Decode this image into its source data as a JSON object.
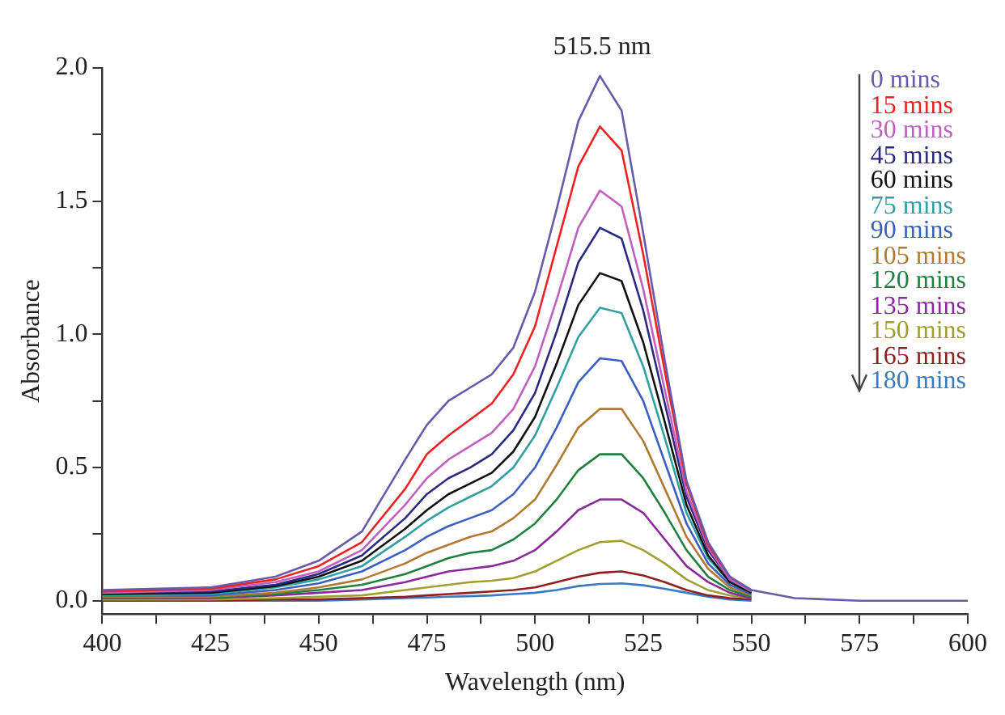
{
  "chart_data": {
    "type": "line",
    "xlabel": "Wavelength (nm)",
    "ylabel": "Absorbance",
    "annotations": [
      {
        "text": "515.5 nm",
        "x": 515.5,
        "y": 1.98
      }
    ],
    "x": [
      400,
      425,
      440,
      450,
      460,
      470,
      475,
      480,
      485,
      490,
      495,
      500,
      505,
      510,
      515,
      520,
      525,
      530,
      535,
      540,
      545,
      550,
      560,
      575,
      600
    ],
    "series": [
      {
        "name": "0 mins",
        "color": "#6a5aaa",
        "values": [
          0.04,
          0.05,
          0.09,
          0.15,
          0.26,
          0.53,
          0.66,
          0.75,
          0.8,
          0.85,
          0.95,
          1.16,
          1.47,
          1.8,
          1.97,
          1.84,
          1.38,
          0.9,
          0.45,
          0.22,
          0.09,
          0.04,
          0.01,
          0,
          0
        ]
      },
      {
        "name": "15 mins",
        "color": "#ee2222",
        "values": [
          0.035,
          0.045,
          0.08,
          0.13,
          0.22,
          0.42,
          0.55,
          0.62,
          0.68,
          0.74,
          0.85,
          1.03,
          1.33,
          1.63,
          1.78,
          1.69,
          1.3,
          0.86,
          0.44,
          0.21,
          0.09,
          0.04,
          null,
          null,
          null
        ]
      },
      {
        "name": "30 mins",
        "color": "#c060c0",
        "values": [
          0.03,
          0.04,
          0.07,
          0.11,
          0.19,
          0.36,
          0.46,
          0.53,
          0.58,
          0.63,
          0.72,
          0.88,
          1.13,
          1.4,
          1.54,
          1.48,
          1.17,
          0.79,
          0.41,
          0.2,
          0.08,
          0.035,
          null,
          null,
          null
        ]
      },
      {
        "name": "45 mins",
        "color": "#2a2a80",
        "values": [
          0.03,
          0.035,
          0.06,
          0.1,
          0.17,
          0.31,
          0.4,
          0.46,
          0.5,
          0.55,
          0.64,
          0.78,
          1.01,
          1.27,
          1.4,
          1.36,
          1.09,
          0.74,
          0.39,
          0.19,
          0.08,
          0.035,
          null,
          null,
          null
        ]
      },
      {
        "name": "60 mins",
        "color": "#111111",
        "values": [
          0.025,
          0.03,
          0.055,
          0.09,
          0.15,
          0.27,
          0.34,
          0.4,
          0.44,
          0.48,
          0.56,
          0.69,
          0.89,
          1.11,
          1.23,
          1.2,
          0.97,
          0.67,
          0.36,
          0.17,
          0.07,
          0.03,
          null,
          null,
          null
        ]
      },
      {
        "name": "75 mins",
        "color": "#30a0a0",
        "values": [
          0.02,
          0.025,
          0.05,
          0.08,
          0.13,
          0.24,
          0.3,
          0.35,
          0.39,
          0.43,
          0.5,
          0.62,
          0.8,
          0.99,
          1.1,
          1.08,
          0.88,
          0.61,
          0.33,
          0.16,
          0.07,
          0.03,
          null,
          null,
          null
        ]
      },
      {
        "name": "90 mins",
        "color": "#3a60c0",
        "values": [
          0.02,
          0.02,
          0.04,
          0.065,
          0.11,
          0.19,
          0.24,
          0.28,
          0.31,
          0.34,
          0.4,
          0.5,
          0.65,
          0.82,
          0.91,
          0.9,
          0.75,
          0.52,
          0.29,
          0.14,
          0.06,
          0.025,
          null,
          null,
          null
        ]
      },
      {
        "name": "105 mins",
        "color": "#b07a30",
        "values": [
          0.015,
          0.015,
          0.03,
          0.05,
          0.08,
          0.14,
          0.18,
          0.21,
          0.24,
          0.26,
          0.31,
          0.38,
          0.51,
          0.65,
          0.72,
          0.72,
          0.6,
          0.42,
          0.24,
          0.12,
          0.05,
          0.02,
          null,
          null,
          null
        ]
      },
      {
        "name": "120 mins",
        "color": "#208040",
        "values": [
          0.01,
          0.012,
          0.025,
          0.04,
          0.06,
          0.1,
          0.13,
          0.16,
          0.18,
          0.19,
          0.23,
          0.29,
          0.38,
          0.49,
          0.55,
          0.55,
          0.46,
          0.33,
          0.19,
          0.09,
          0.04,
          0.015,
          null,
          null,
          null
        ]
      },
      {
        "name": "135 mins",
        "color": "#8a2a9a",
        "values": [
          0.01,
          0.01,
          0.02,
          0.03,
          0.04,
          0.07,
          0.09,
          0.11,
          0.12,
          0.13,
          0.15,
          0.19,
          0.26,
          0.34,
          0.38,
          0.38,
          0.33,
          0.23,
          0.13,
          0.07,
          0.03,
          0.01,
          null,
          null,
          null
        ]
      },
      {
        "name": "150 mins",
        "color": "#a0a030",
        "values": [
          0.005,
          0.005,
          0.01,
          0.015,
          0.02,
          0.04,
          0.05,
          0.06,
          0.07,
          0.075,
          0.085,
          0.11,
          0.15,
          0.19,
          0.22,
          0.225,
          0.19,
          0.14,
          0.08,
          0.04,
          0.02,
          0.01,
          null,
          null,
          null
        ]
      },
      {
        "name": "165 mins",
        "color": "#902020",
        "values": [
          0,
          0,
          0.005,
          0.005,
          0.01,
          0.015,
          0.02,
          0.025,
          0.03,
          0.035,
          0.04,
          0.05,
          0.07,
          0.09,
          0.105,
          0.11,
          0.095,
          0.07,
          0.04,
          0.02,
          0.01,
          0.005,
          null,
          null,
          null
        ]
      },
      {
        "name": "180 mins",
        "color": "#3a7ac0",
        "values": [
          0,
          0,
          0,
          0,
          0.005,
          0.01,
          0.012,
          0.015,
          0.017,
          0.02,
          0.025,
          0.03,
          0.04,
          0.055,
          0.063,
          0.065,
          0.058,
          0.045,
          0.03,
          0.015,
          0.005,
          0,
          null,
          null,
          null
        ]
      }
    ],
    "xlim": [
      400,
      600
    ],
    "xticks": [
      400,
      {
        "value": 412.5,
        "label": null
      },
      425,
      {
        "value": 437.5,
        "label": null
      },
      450,
      {
        "value": 462.5,
        "label": null
      },
      475,
      {
        "value": 487.5,
        "label": null
      },
      500,
      {
        "value": 512.5,
        "label": null
      },
      525,
      {
        "value": 537.5,
        "label": null
      },
      550,
      {
        "value": 562.5,
        "label": null
      },
      575,
      {
        "value": 587.5,
        "label": null
      },
      600
    ],
    "ylim": [
      -0.05,
      2.0
    ],
    "yticks": [
      {
        "value": 0,
        "label": "0.0"
      },
      {
        "value": 0.25,
        "label": null
      },
      {
        "value": 0.5,
        "label": "0.5"
      },
      {
        "value": 0.75,
        "label": null
      },
      {
        "value": 1,
        "label": "1.0"
      },
      {
        "value": 1.25,
        "label": null
      },
      {
        "value": 1.5,
        "label": "1.5"
      },
      {
        "value": 1.75,
        "label": null
      },
      {
        "value": 2,
        "label": "2.0"
      }
    ],
    "grid": false,
    "legend": "top right",
    "marker": "none",
    "line_style": "solid"
  }
}
